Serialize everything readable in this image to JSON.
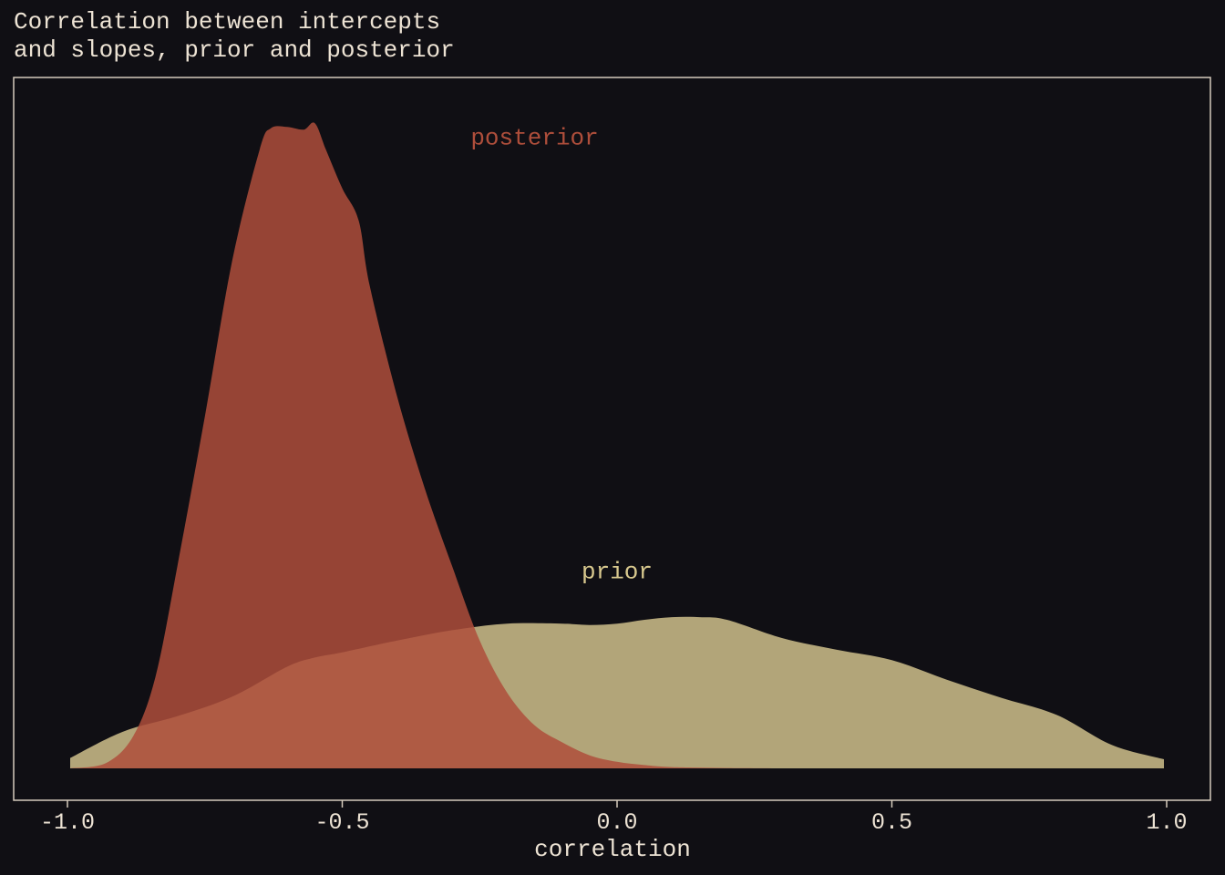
{
  "chart_data": {
    "type": "area",
    "title_lines": [
      "Correlation between intercepts",
      "and slopes, prior and posterior"
    ],
    "xlabel": "correlation",
    "ylabel": "",
    "xlim": [
      -1.0,
      1.0
    ],
    "xticks": [
      "-1.0",
      "-0.5",
      "0.0",
      "0.5",
      "1.0"
    ],
    "xtick_values": [
      -1.0,
      -0.5,
      0.0,
      0.5,
      1.0
    ],
    "yticks": [],
    "grid": false,
    "series": [
      {
        "name": "prior",
        "color": "#c4b684",
        "opacity": 0.9,
        "x": [
          -0.995,
          -0.9,
          -0.8,
          -0.7,
          -0.6,
          -0.55,
          -0.5,
          -0.4,
          -0.3,
          -0.2,
          -0.1,
          -0.05,
          0.0,
          0.05,
          0.1,
          0.15,
          0.2,
          0.3,
          0.4,
          0.5,
          0.6,
          0.7,
          0.8,
          0.9,
          0.995
        ],
        "density": [
          0.08,
          0.28,
          0.4,
          0.55,
          0.78,
          0.85,
          0.89,
          0.98,
          1.06,
          1.11,
          1.11,
          1.1,
          1.11,
          1.14,
          1.16,
          1.16,
          1.14,
          1.0,
          0.91,
          0.83,
          0.68,
          0.54,
          0.41,
          0.18,
          0.07
        ]
      },
      {
        "name": "posterior",
        "color": "#ae4e3b",
        "opacity": 0.85,
        "x": [
          -0.995,
          -0.93,
          -0.88,
          -0.84,
          -0.8,
          -0.75,
          -0.7,
          -0.65,
          -0.63,
          -0.6,
          -0.57,
          -0.55,
          -0.53,
          -0.5,
          -0.47,
          -0.45,
          -0.4,
          -0.35,
          -0.3,
          -0.25,
          -0.2,
          -0.15,
          -0.1,
          -0.05,
          0.0,
          0.05,
          0.1,
          0.2,
          0.3
        ],
        "density": [
          0.0,
          0.04,
          0.25,
          0.7,
          1.55,
          2.7,
          3.9,
          4.75,
          4.91,
          4.92,
          4.9,
          4.95,
          4.75,
          4.45,
          4.2,
          3.7,
          2.85,
          2.15,
          1.55,
          0.98,
          0.58,
          0.33,
          0.2,
          0.1,
          0.05,
          0.025,
          0.01,
          0.003,
          0.0
        ]
      }
    ],
    "annotations": [
      {
        "text": "posterior",
        "x": -0.15,
        "y": 4.85,
        "color": "#ae4e3b"
      },
      {
        "text": "prior",
        "x": 0.0,
        "y": 1.52,
        "color": "#d8c88e"
      }
    ],
    "ylim": [
      0,
      5.3
    ]
  }
}
